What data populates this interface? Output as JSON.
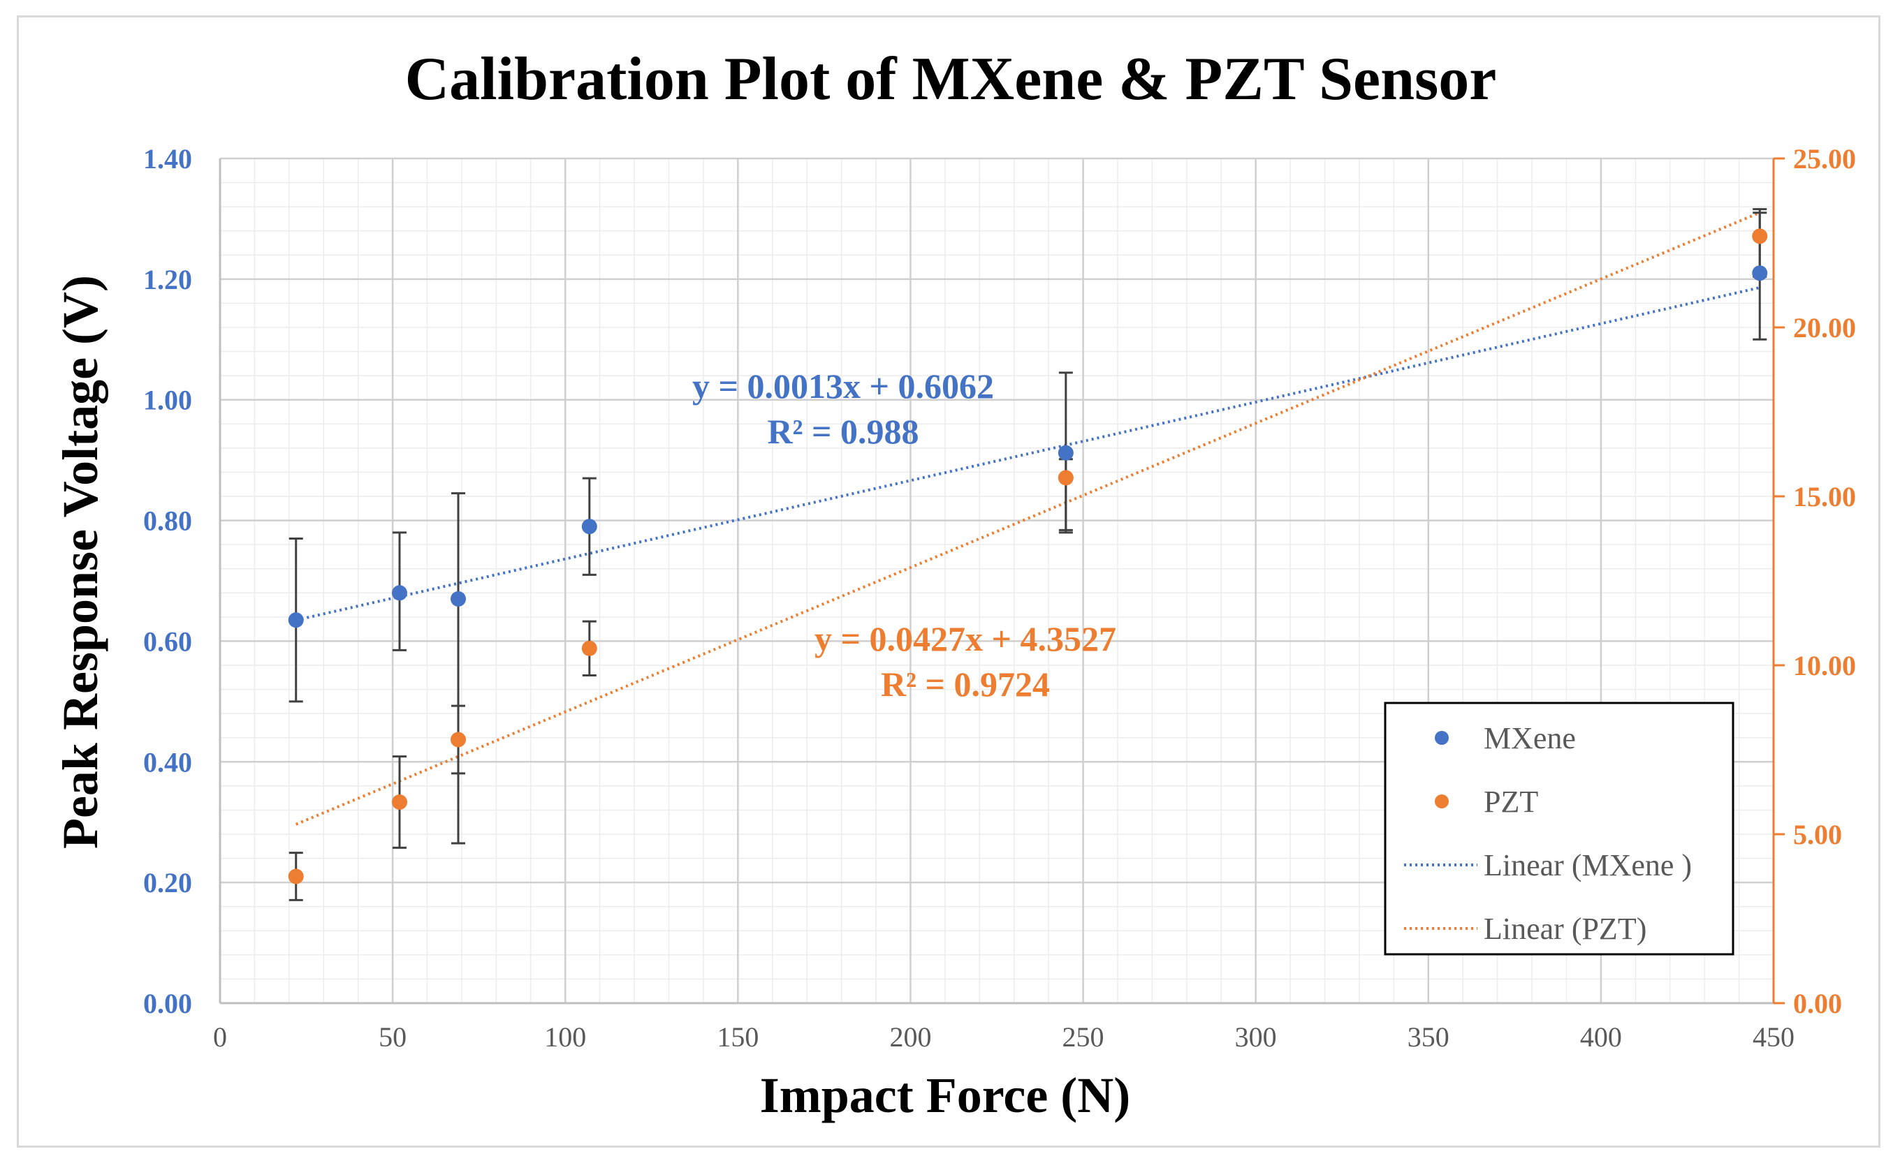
{
  "chart_data": {
    "type": "scatter",
    "title": "Calibration Plot of MXene & PZT Sensor",
    "xlabel": "Impact Force (N)",
    "ylabel": "Peak Response Voltage (V)",
    "xlim": [
      0,
      450
    ],
    "x_ticks": [
      "0",
      "50",
      "100",
      "150",
      "200",
      "250",
      "300",
      "350",
      "400",
      "450"
    ],
    "x_tick_values": [
      0,
      50,
      100,
      150,
      200,
      250,
      300,
      350,
      400,
      450
    ],
    "ylim_left": [
      0,
      1.4
    ],
    "y_left_ticks": [
      "0.00",
      "0.20",
      "0.40",
      "0.60",
      "0.80",
      "1.00",
      "1.20",
      "1.40"
    ],
    "y_left_tick_values": [
      0,
      0.2,
      0.4,
      0.6,
      0.8,
      1.0,
      1.2,
      1.4
    ],
    "ylim_right": [
      0,
      25
    ],
    "y_right_ticks": [
      "0.00",
      "5.00",
      "10.00",
      "15.00",
      "20.00",
      "25.00"
    ],
    "y_right_tick_values": [
      0,
      5,
      10,
      15,
      20,
      25
    ],
    "grid": true,
    "legend_position": "bottom-right",
    "series": [
      {
        "name": "MXene",
        "axis": "left",
        "color": "#4472c4",
        "x": [
          22,
          52,
          69,
          107,
          245,
          446
        ],
        "y": [
          0.635,
          0.68,
          0.67,
          0.79,
          0.912,
          1.21
        ],
        "err_low": [
          0.5,
          0.585,
          0.265,
          0.71,
          0.78,
          1.1
        ],
        "err_high": [
          0.77,
          0.78,
          0.845,
          0.87,
          1.045,
          1.31
        ]
      },
      {
        "name": "PZT",
        "axis": "right",
        "color": "#ed7d31",
        "x": [
          22,
          52,
          69,
          107,
          245,
          446
        ],
        "y": [
          3.75,
          5.95,
          7.8,
          10.5,
          15.55,
          22.7
        ],
        "err_low": [
          3.05,
          4.6,
          6.8,
          9.7,
          14.0,
          21.5
        ],
        "err_high": [
          4.45,
          7.3,
          8.8,
          11.3,
          16.1,
          23.5
        ]
      }
    ],
    "trendlines": [
      {
        "name": "Linear (MXene )",
        "series": "MXene",
        "axis": "left",
        "slope": 0.0013,
        "intercept": 0.6062,
        "x_range": [
          22,
          446
        ],
        "color": "#4472c4",
        "equation": "y = 0.0013x + 0.6062",
        "r2": "R² = 0.988"
      },
      {
        "name": "Linear (PZT)",
        "series": "PZT",
        "axis": "right",
        "slope": 0.0427,
        "intercept": 4.3527,
        "x_range": [
          22,
          446
        ],
        "color": "#ed7d31",
        "equation": "y = 0.0427x + 4.3527",
        "r2": "R² = 0.9724"
      }
    ]
  }
}
